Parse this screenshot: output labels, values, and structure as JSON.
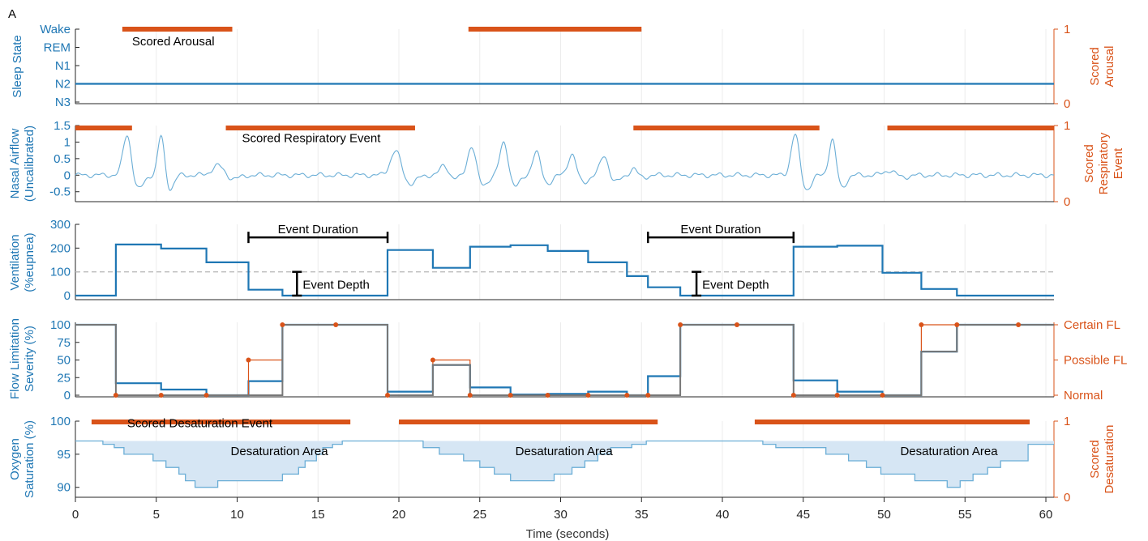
{
  "panel_label": "A",
  "colors": {
    "blue": "#1f77b4",
    "lightblue": "#6baed6",
    "orange": "#d95319",
    "gray": "#777777",
    "fill": "#d6e6f4"
  },
  "chart_data": [
    {
      "id": "sleep",
      "type": "line",
      "ylabel": "Sleep State",
      "y_ticks": [
        "Wake",
        "REM",
        "N1",
        "N2",
        "N3"
      ],
      "right_ylabel_lines": [
        "Scored",
        "Arousal"
      ],
      "right_ticks": [
        "1",
        "0"
      ],
      "series": [
        {
          "x": [
            0,
            60.5
          ],
          "y": [
            "N2",
            "N2"
          ]
        }
      ],
      "events": [
        [
          2.9,
          9.7
        ],
        [
          24.3,
          35.0
        ]
      ],
      "annotations": [
        {
          "text": "Scored Arousal",
          "x": 3.5,
          "level": "Wake"
        }
      ]
    },
    {
      "id": "airflow",
      "type": "line",
      "ylabel_lines": [
        "Nasal Airflow",
        "(Uncalibrated)"
      ],
      "y_ticks": [
        "1.5",
        "1",
        "0.5",
        "0",
        "-0.5"
      ],
      "ylim": [
        -0.8,
        1.5
      ],
      "right_ylabel_lines": [
        "Scored",
        "Respiratory",
        "Event"
      ],
      "right_ticks": [
        "1",
        "0"
      ],
      "events": [
        [
          0.0,
          3.5
        ],
        [
          9.3,
          21.0
        ],
        [
          34.5,
          46.0
        ],
        [
          50.2,
          60.5
        ]
      ],
      "breaths": [
        {
          "x": 3.2,
          "amp": 1.25,
          "w": 0.35
        },
        {
          "x": 5.3,
          "amp": 1.2,
          "w": 0.28
        },
        {
          "x": 8.8,
          "amp": 0.3,
          "w": 0.5
        },
        {
          "x": 19.8,
          "amp": 0.75,
          "w": 0.45
        },
        {
          "x": 22.8,
          "amp": 0.3,
          "w": 0.35
        },
        {
          "x": 24.5,
          "amp": 0.9,
          "w": 0.35
        },
        {
          "x": 26.5,
          "amp": 1.0,
          "w": 0.35
        },
        {
          "x": 28.5,
          "amp": 0.7,
          "w": 0.35
        },
        {
          "x": 30.7,
          "amp": 0.65,
          "w": 0.35
        },
        {
          "x": 32.7,
          "amp": 0.6,
          "w": 0.35
        },
        {
          "x": 34.5,
          "amp": 0.2,
          "w": 0.3
        },
        {
          "x": 44.5,
          "amp": 1.25,
          "w": 0.35
        },
        {
          "x": 46.8,
          "amp": 1.1,
          "w": 0.3
        },
        {
          "x": 50.3,
          "amp": 0.15,
          "w": 0.45
        }
      ],
      "annotations": [
        {
          "text": "Scored Respiratory Event",
          "x": 10.3,
          "y": 1.1
        }
      ]
    },
    {
      "id": "ventilation",
      "type": "line",
      "ylabel_lines": [
        "Ventilation",
        "(%eupnea)"
      ],
      "y_ticks": [
        "300",
        "200",
        "100",
        "0"
      ],
      "ylim": [
        -20,
        300
      ],
      "eupnea_line": 100,
      "series": [
        {
          "x": [
            0,
            2.5,
            2.5,
            5.3,
            5.3,
            8.1,
            8.1,
            10.7,
            10.7,
            12.8,
            12.8,
            19.3,
            19.3,
            22.1,
            22.1,
            24.4,
            24.4,
            26.9,
            26.9,
            29.2,
            29.2,
            31.7,
            31.7,
            34.1,
            34.1,
            35.4,
            35.4,
            37.4,
            37.4,
            44.4,
            44.4,
            47.1,
            47.1,
            49.9,
            49.9,
            52.3,
            52.3,
            54.5,
            54.5,
            60.5
          ],
          "y": [
            0,
            0,
            215,
            215,
            198,
            198,
            140,
            140,
            25,
            25,
            0,
            0,
            192,
            192,
            117,
            117,
            206,
            206,
            212,
            212,
            188,
            188,
            140,
            140,
            82,
            82,
            35,
            35,
            0,
            0,
            206,
            206,
            210,
            210,
            96,
            96,
            28,
            28,
            0,
            0
          ]
        }
      ],
      "annotations": [
        {
          "text": "Event Duration",
          "x1": 10.7,
          "x2": 19.3,
          "y": 245
        },
        {
          "text": "Event Duration",
          "x1": 35.4,
          "x2": 44.4,
          "y": 245
        },
        {
          "text": "Event Depth",
          "x": 13.7,
          "y1": 0,
          "y2": 100
        },
        {
          "text": "Event Depth",
          "x": 38.4,
          "y1": 0,
          "y2": 100
        }
      ]
    },
    {
      "id": "fl",
      "type": "line",
      "ylabel_lines": [
        "Flow Limitation",
        "Severity (%)"
      ],
      "y_ticks": [
        "100",
        "75",
        "50",
        "25",
        "0"
      ],
      "ylim": [
        0,
        100
      ],
      "right_ticks": [
        "Certain FL",
        "Possible FL",
        "Normal"
      ],
      "series": [
        {
          "name": "",
          "color": "#1f77b4",
          "x": [
            0,
            2.5,
            2.5,
            5.3,
            5.3,
            8.1,
            8.1,
            10.7,
            10.7,
            12.8,
            12.8,
            19.3,
            19.3,
            22.1,
            22.1,
            24.4,
            24.4,
            26.9,
            26.9,
            29.2,
            29.2,
            31.7,
            31.7,
            34.1,
            34.1,
            35.4,
            35.4,
            37.4,
            37.4,
            44.4,
            44.4,
            47.1,
            47.1,
            49.9,
            49.9,
            52.3,
            52.3,
            54.5,
            54.5,
            60.5
          ],
          "y": [
            100,
            100,
            17,
            17,
            8,
            8,
            0,
            0,
            20,
            20,
            100,
            100,
            5,
            5,
            43,
            43,
            11,
            11,
            1,
            1,
            2,
            2,
            5,
            5,
            0,
            0,
            27,
            27,
            100,
            100,
            21,
            21,
            5,
            5,
            0,
            0,
            62,
            62,
            100,
            100
          ]
        },
        {
          "name": "",
          "color": "#d95319",
          "x": [
            0,
            2.5,
            2.5,
            10.7,
            10.7,
            12.8,
            12.8,
            19.3,
            19.3,
            22.1,
            22.1,
            24.4,
            24.4,
            35.4,
            35.4,
            37.4,
            37.4,
            44.4,
            44.4,
            52.3,
            52.3,
            54.5,
            54.5,
            60.5
          ],
          "y": [
            100,
            100,
            0,
            0,
            50,
            50,
            100,
            100,
            0,
            0,
            50,
            50,
            0,
            0,
            0,
            0,
            100,
            100,
            0,
            0,
            100,
            100,
            100,
            100
          ]
        },
        {
          "name": "",
          "color": "#777777",
          "x": [
            0,
            2.5,
            2.5,
            10.7,
            10.7,
            12.8,
            12.8,
            19.3,
            19.3,
            22.1,
            22.1,
            24.4,
            24.4,
            35.4,
            35.4,
            37.4,
            37.4,
            44.4,
            44.4,
            52.3,
            52.3,
            54.5,
            54.5,
            60.5
          ],
          "y": [
            100,
            100,
            0,
            0,
            0,
            0,
            100,
            100,
            0,
            0,
            43,
            43,
            0,
            0,
            0,
            0,
            100,
            100,
            0,
            0,
            62,
            62,
            100,
            100
          ]
        }
      ],
      "points": {
        "x": [
          2.5,
          5.3,
          8.1,
          10.7,
          12.8,
          16.1,
          19.3,
          22.1,
          24.4,
          26.9,
          29.2,
          31.7,
          34.1,
          35.4,
          37.4,
          40.9,
          44.4,
          47.1,
          49.9,
          52.3,
          54.5,
          58.3
        ],
        "y": [
          0,
          0,
          0,
          50,
          100,
          100,
          0,
          50,
          0,
          0,
          0,
          0,
          0,
          0,
          100,
          100,
          0,
          0,
          0,
          100,
          100,
          100
        ]
      }
    },
    {
      "id": "spo2",
      "type": "area",
      "ylabel_lines": [
        "Oxygen",
        "Saturation (%)"
      ],
      "y_ticks": [
        "100",
        "95",
        "90"
      ],
      "ylim": [
        88.5,
        100
      ],
      "right_ylabel_lines": [
        "Scored",
        "Desaturation"
      ],
      "right_ticks": [
        "1",
        "0"
      ],
      "baseline": 97,
      "series": [
        {
          "x": [
            0,
            1.7,
            1.7,
            2.4,
            2.4,
            3.0,
            3.0,
            4.8,
            4.8,
            5.6,
            5.6,
            6.4,
            6.4,
            6.8,
            6.8,
            7.4,
            7.4,
            7.9,
            7.9,
            8.8,
            8.8,
            12.8,
            12.8,
            13.8,
            13.8,
            14.2,
            14.2,
            14.9,
            14.9,
            15.3,
            15.3,
            15.9,
            15.9,
            16.5,
            16.5,
            17.1,
            17.1,
            21.5,
            21.5,
            22.5,
            22.5,
            24.0,
            24.0,
            25.0,
            25.0,
            25.9,
            25.9,
            26.9,
            26.9,
            29.6,
            29.6,
            30.7,
            30.7,
            31.5,
            31.5,
            32.3,
            32.3,
            33.1,
            33.1,
            34.4,
            34.4,
            35.3,
            35.3,
            42.5,
            42.5,
            43.3,
            43.3,
            46.4,
            46.4,
            47.8,
            47.8,
            48.9,
            48.9,
            49.8,
            49.8,
            51.9,
            51.9,
            53.9,
            53.9,
            54.7,
            54.7,
            55.5,
            55.5,
            56.4,
            56.4,
            57.2,
            57.2,
            58.9,
            58.9,
            60.5
          ],
          "y": [
            97,
            97,
            96.5,
            96.5,
            96,
            96,
            95,
            95,
            94,
            94,
            93,
            93,
            92,
            92,
            91,
            91,
            90,
            90,
            90,
            90,
            91,
            91,
            92,
            92,
            93,
            93,
            94,
            94,
            95,
            95,
            96,
            96,
            96.5,
            96.5,
            97,
            97,
            97,
            97,
            96,
            96,
            95,
            95,
            94,
            94,
            93,
            93,
            92,
            92,
            91,
            91,
            92,
            92,
            93,
            93,
            94,
            94,
            95,
            95,
            96,
            96,
            96.5,
            96.5,
            97,
            97,
            96.5,
            96.5,
            96,
            96,
            95,
            95,
            94,
            94,
            93,
            93,
            92,
            92,
            91,
            91,
            90,
            90,
            91,
            91,
            92,
            92,
            93,
            93,
            94,
            94,
            96.5,
            96.5
          ]
        }
      ],
      "events": [
        [
          1.0,
          17.0
        ],
        [
          20.0,
          36.0
        ],
        [
          42.0,
          59.0
        ]
      ],
      "annotations": [
        {
          "text": "Scored Desaturation Event",
          "x": 3.2,
          "y": 99.7
        },
        {
          "text": "Desaturation Area",
          "x": 9.6,
          "y": 95.5
        },
        {
          "text": "Desaturation Area",
          "x": 27.2,
          "y": 95.5
        },
        {
          "text": "Desaturation Area",
          "x": 51.0,
          "y": 95.5
        }
      ]
    }
  ],
  "x_axis": {
    "xlabel": "Time (seconds)",
    "xlim": [
      0,
      60.5
    ],
    "ticks": [
      "0",
      "5",
      "10",
      "15",
      "20",
      "25",
      "30",
      "35",
      "40",
      "45",
      "50",
      "55",
      "60"
    ],
    "tick_values": [
      0,
      5,
      10,
      15,
      20,
      25,
      30,
      35,
      40,
      45,
      50,
      55,
      60
    ]
  }
}
